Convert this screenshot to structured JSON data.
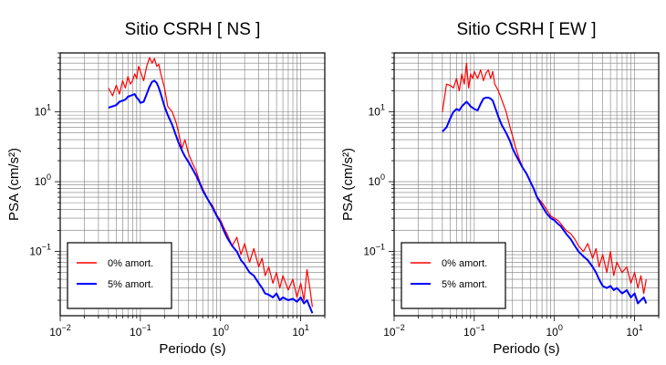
{
  "colors": {
    "red": "#ff0000",
    "blue": "#0000ff",
    "grid": "#7f7f7f",
    "axis": "#000000"
  },
  "chart_data": [
    {
      "type": "line",
      "title": "Sitio CSRH [ NS ]",
      "xlabel": "Periodo (s)",
      "ylabel": "PSA (cm/s²)",
      "xscale": "log",
      "yscale": "log",
      "xlim": [
        0.01,
        20
      ],
      "ylim": [
        0.012,
        70
      ],
      "xticks": [
        {
          "v": 0.01,
          "b": "10",
          "e": "−2"
        },
        {
          "v": 0.1,
          "b": "10",
          "e": "−1"
        },
        {
          "v": 1,
          "b": "10",
          "e": "0"
        },
        {
          "v": 10,
          "b": "10",
          "e": "1"
        }
      ],
      "yticks": [
        {
          "v": 0.1,
          "b": "10",
          "e": "−1"
        },
        {
          "v": 1,
          "b": "10",
          "e": "0"
        },
        {
          "v": 10,
          "b": "10",
          "e": "1"
        }
      ],
      "grid": true,
      "legend_position": "bottom-left",
      "series": [
        {
          "name": "0% amort.",
          "color": "#ff0000",
          "x": [
            0.04,
            0.045,
            0.05,
            0.055,
            0.06,
            0.065,
            0.07,
            0.075,
            0.08,
            0.085,
            0.09,
            0.095,
            0.1,
            0.11,
            0.12,
            0.13,
            0.14,
            0.15,
            0.16,
            0.17,
            0.18,
            0.2,
            0.22,
            0.25,
            0.28,
            0.3,
            0.33,
            0.36,
            0.4,
            0.45,
            0.5,
            0.55,
            0.6,
            0.7,
            0.8,
            0.9,
            1.0,
            1.1,
            1.2,
            1.4,
            1.6,
            1.8,
            2.0,
            2.3,
            2.6,
            3.0,
            3.3,
            3.6,
            4.0,
            4.5,
            5.0,
            5.5,
            6.0,
            7.0,
            8.0,
            9.0,
            10.0,
            11.0,
            12.0,
            13.0,
            14.0
          ],
          "y": [
            22,
            17,
            24,
            18,
            28,
            22,
            32,
            25,
            28,
            35,
            30,
            45,
            38,
            28,
            45,
            60,
            50,
            58,
            45,
            48,
            35,
            22,
            12,
            10,
            7,
            5,
            3,
            4,
            2.5,
            1.8,
            1.4,
            1.0,
            0.8,
            0.55,
            0.45,
            0.33,
            0.28,
            0.22,
            0.18,
            0.12,
            0.16,
            0.09,
            0.13,
            0.07,
            0.11,
            0.06,
            0.08,
            0.045,
            0.06,
            0.035,
            0.05,
            0.03,
            0.045,
            0.028,
            0.04,
            0.022,
            0.035,
            0.02,
            0.055,
            0.03,
            0.016
          ]
        },
        {
          "name": "5% amort.",
          "color": "#0000ff",
          "x": [
            0.04,
            0.045,
            0.05,
            0.055,
            0.06,
            0.065,
            0.07,
            0.075,
            0.08,
            0.085,
            0.09,
            0.095,
            0.1,
            0.11,
            0.12,
            0.13,
            0.14,
            0.15,
            0.16,
            0.17,
            0.18,
            0.2,
            0.22,
            0.25,
            0.28,
            0.3,
            0.33,
            0.36,
            0.4,
            0.45,
            0.5,
            0.55,
            0.6,
            0.7,
            0.8,
            0.9,
            1.0,
            1.1,
            1.2,
            1.4,
            1.6,
            1.8,
            2.0,
            2.3,
            2.6,
            3.0,
            3.3,
            3.6,
            4.0,
            4.5,
            5.0,
            5.5,
            6.0,
            7.0,
            8.0,
            9.0,
            10.0,
            11.0,
            12.0,
            13.0,
            14.0
          ],
          "y": [
            11.5,
            12,
            12.5,
            14,
            14.5,
            15,
            16.5,
            17,
            17.5,
            18,
            16,
            15,
            13.5,
            14,
            18,
            23,
            27,
            28,
            26,
            22,
            18,
            12,
            9,
            6.5,
            4.5,
            3.6,
            2.8,
            2.3,
            1.9,
            1.5,
            1.2,
            0.95,
            0.75,
            0.55,
            0.42,
            0.32,
            0.26,
            0.2,
            0.16,
            0.12,
            0.1,
            0.075,
            0.065,
            0.05,
            0.045,
            0.035,
            0.03,
            0.025,
            0.024,
            0.022,
            0.025,
            0.02,
            0.022,
            0.02,
            0.021,
            0.019,
            0.022,
            0.018,
            0.02,
            0.016,
            0.013
          ]
        }
      ]
    },
    {
      "type": "line",
      "title": "Sitio CSRH [ EW ]",
      "xlabel": "Periodo (s)",
      "ylabel": "PSA (cm/s²)",
      "xscale": "log",
      "yscale": "log",
      "xlim": [
        0.01,
        20
      ],
      "ylim": [
        0.012,
        70
      ],
      "xticks": [
        {
          "v": 0.01,
          "b": "10",
          "e": "−2"
        },
        {
          "v": 0.1,
          "b": "10",
          "e": "−1"
        },
        {
          "v": 1,
          "b": "10",
          "e": "0"
        },
        {
          "v": 10,
          "b": "10",
          "e": "1"
        }
      ],
      "yticks": [
        {
          "v": 0.1,
          "b": "10",
          "e": "−1"
        },
        {
          "v": 1,
          "b": "10",
          "e": "0"
        },
        {
          "v": 10,
          "b": "10",
          "e": "1"
        }
      ],
      "grid": true,
      "legend_position": "bottom-left",
      "series": [
        {
          "name": "0% amort.",
          "color": "#ff0000",
          "x": [
            0.04,
            0.045,
            0.05,
            0.055,
            0.06,
            0.065,
            0.07,
            0.075,
            0.08,
            0.085,
            0.09,
            0.095,
            0.1,
            0.11,
            0.12,
            0.13,
            0.14,
            0.15,
            0.16,
            0.17,
            0.18,
            0.2,
            0.22,
            0.25,
            0.28,
            0.3,
            0.33,
            0.36,
            0.4,
            0.45,
            0.5,
            0.55,
            0.6,
            0.7,
            0.8,
            0.9,
            1.0,
            1.1,
            1.2,
            1.4,
            1.6,
            1.8,
            2.0,
            2.3,
            2.6,
            3.0,
            3.3,
            3.6,
            4.0,
            4.5,
            5.0,
            5.5,
            6.0,
            7.0,
            8.0,
            9.0,
            10.0,
            11.0,
            12.0,
            13.0,
            14.0
          ],
          "y": [
            10,
            25,
            24,
            22,
            30,
            20,
            35,
            25,
            50,
            22,
            35,
            30,
            38,
            30,
            40,
            28,
            36,
            40,
            30,
            38,
            25,
            20,
            15,
            10,
            6,
            4.5,
            3,
            2.2,
            1.6,
            1.3,
            1.0,
            0.8,
            0.62,
            0.5,
            0.4,
            0.32,
            0.3,
            0.28,
            0.25,
            0.2,
            0.18,
            0.15,
            0.12,
            0.1,
            0.13,
            0.08,
            0.11,
            0.06,
            0.09,
            0.05,
            0.1,
            0.045,
            0.07,
            0.05,
            0.06,
            0.035,
            0.05,
            0.03,
            0.045,
            0.025,
            0.04
          ]
        },
        {
          "name": "5% amort.",
          "color": "#0000ff",
          "x": [
            0.04,
            0.045,
            0.05,
            0.055,
            0.06,
            0.065,
            0.07,
            0.075,
            0.08,
            0.085,
            0.09,
            0.095,
            0.1,
            0.11,
            0.12,
            0.13,
            0.14,
            0.15,
            0.16,
            0.17,
            0.18,
            0.2,
            0.22,
            0.25,
            0.28,
            0.3,
            0.33,
            0.36,
            0.4,
            0.45,
            0.5,
            0.55,
            0.6,
            0.7,
            0.8,
            0.9,
            1.0,
            1.1,
            1.2,
            1.4,
            1.6,
            1.8,
            2.0,
            2.3,
            2.6,
            3.0,
            3.3,
            3.6,
            4.0,
            4.5,
            5.0,
            5.5,
            6.0,
            7.0,
            8.0,
            9.0,
            10.0,
            11.0,
            12.0,
            13.0,
            14.0
          ],
          "y": [
            5.2,
            6,
            8,
            10,
            11,
            10.5,
            12,
            13,
            14,
            13,
            12,
            11.5,
            11,
            10.5,
            13,
            15.5,
            16,
            16,
            15.5,
            14.5,
            12,
            8.5,
            6.5,
            5,
            3.8,
            3,
            2.4,
            2.0,
            1.6,
            1.3,
            1.0,
            0.8,
            0.62,
            0.45,
            0.35,
            0.3,
            0.28,
            0.25,
            0.23,
            0.18,
            0.15,
            0.12,
            0.1,
            0.085,
            0.075,
            0.06,
            0.05,
            0.04,
            0.032,
            0.03,
            0.032,
            0.028,
            0.03,
            0.025,
            0.028,
            0.022,
            0.025,
            0.018,
            0.02,
            0.022,
            0.018
          ]
        }
      ]
    }
  ]
}
